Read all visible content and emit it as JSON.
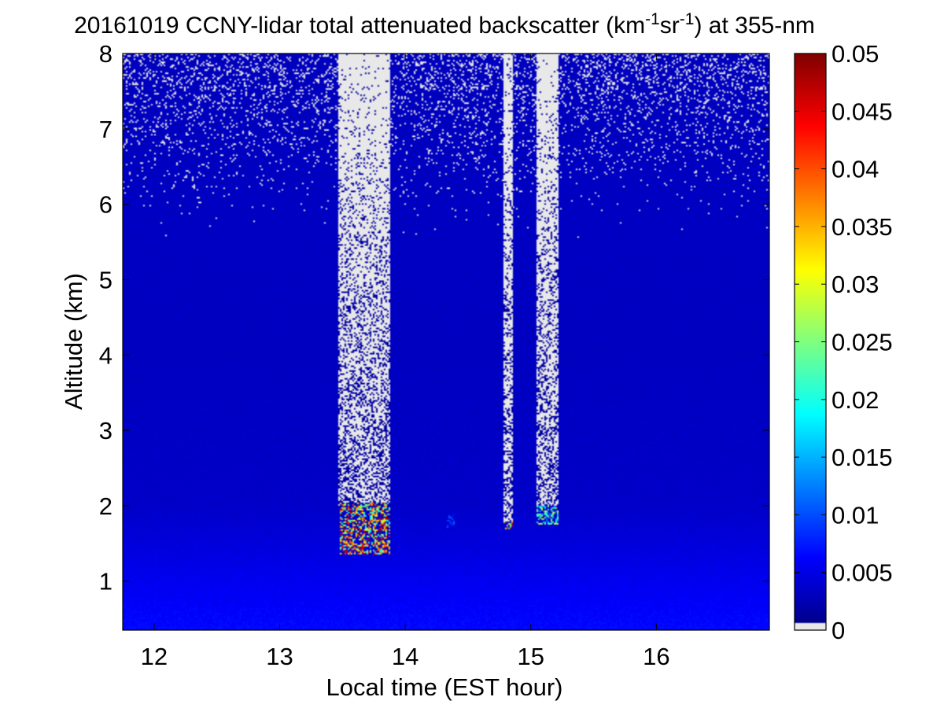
{
  "chart_data": {
    "type": "heatmap",
    "title_parts": {
      "prefix": "20161019 CCNY-lidar total attenuated backscatter (km",
      "sup1": "-1",
      "mid": "sr",
      "sup2": "-1",
      "suffix": ") at 355-nm"
    },
    "xlabel": "Local time (EST hour)",
    "ylabel": "Altitude (km)",
    "xlim": [
      11.75,
      16.9
    ],
    "ylim": [
      0.35,
      8.0
    ],
    "x_ticks": [
      "12",
      "13",
      "14",
      "15",
      "16"
    ],
    "y_ticks": [
      "1",
      "2",
      "3",
      "4",
      "5",
      "6",
      "7",
      "8"
    ],
    "colorbar": {
      "colormap": "jet",
      "range": [
        0,
        0.05
      ],
      "tick_labels": [
        "0",
        "0.005",
        "0.01",
        "0.015",
        "0.02",
        "0.025",
        "0.03",
        "0.035",
        "0.04",
        "0.045",
        "0.05"
      ],
      "below_range_color": "#e8e8e8"
    },
    "background_profile": [
      {
        "altitude_km": 0.4,
        "value": 0.0065
      },
      {
        "altitude_km": 1.0,
        "value": 0.0055
      },
      {
        "altitude_km": 1.5,
        "value": 0.0045
      },
      {
        "altitude_km": 2.0,
        "value": 0.0036
      },
      {
        "altitude_km": 4.0,
        "value": 0.0032
      },
      {
        "altitude_km": 6.0,
        "value": 0.0033
      },
      {
        "altitude_km": 8.0,
        "value": 0.003
      }
    ],
    "clouds": [
      {
        "time_start": 13.48,
        "time_end": 13.88,
        "base_km": 1.35,
        "top_km": 2.05,
        "peak_value": 0.05,
        "note": "broken low cloud, attenuated signal above"
      },
      {
        "time_start": 14.33,
        "time_end": 14.4,
        "base_km": 1.7,
        "top_km": 1.9,
        "peak_value": 0.012
      },
      {
        "time_start": 14.78,
        "time_end": 14.86,
        "base_km": 1.68,
        "top_km": 1.8,
        "peak_value": 0.05
      },
      {
        "time_start": 15.05,
        "time_end": 15.22,
        "base_km": 1.75,
        "top_km": 2.0,
        "peak_value": 0.03
      }
    ],
    "attenuated_columns": [
      {
        "time_start": 13.47,
        "time_end": 13.88,
        "from_km": 2.0,
        "to_km": 8.0
      },
      {
        "time_start": 14.78,
        "time_end": 14.86,
        "from_km": 1.8,
        "to_km": 8.0
      },
      {
        "time_start": 15.05,
        "time_end": 15.22,
        "from_km": 2.0,
        "to_km": 8.0
      }
    ],
    "noise": {
      "from_km": 5.5,
      "to_km": 8.0,
      "description": "speckled below-range returns increasing with altitude"
    }
  }
}
